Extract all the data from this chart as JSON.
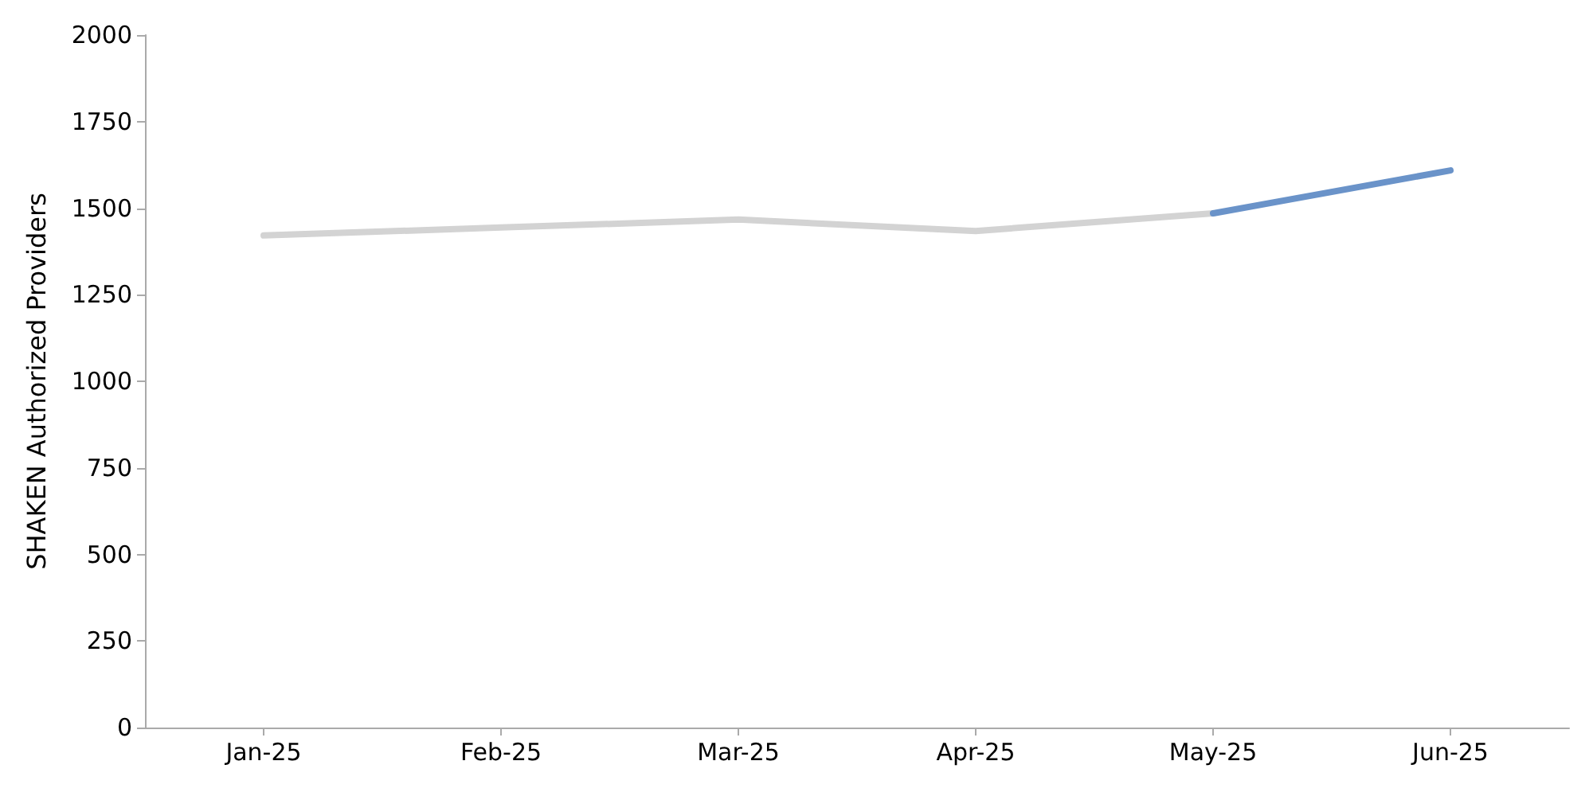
{
  "chart_data": {
    "type": "line",
    "ylabel": "SHAKEN Authorized Providers",
    "categories": [
      "Jan-25",
      "Feb-25",
      "Mar-25",
      "Apr-25",
      "May-25",
      "Jun-25"
    ],
    "series": [
      {
        "color": "#d3d3d3",
        "values": [
          1421,
          1444,
          1467,
          1434,
          1485,
          null
        ]
      },
      {
        "color": "#6a93c9",
        "values": [
          null,
          null,
          null,
          null,
          1485,
          1609
        ]
      }
    ],
    "ylim": [
      0,
      2000
    ],
    "yticks": [
      0,
      250,
      500,
      750,
      1000,
      1250,
      1500,
      1750,
      2000
    ],
    "marker": "none",
    "line_style": "solid"
  }
}
